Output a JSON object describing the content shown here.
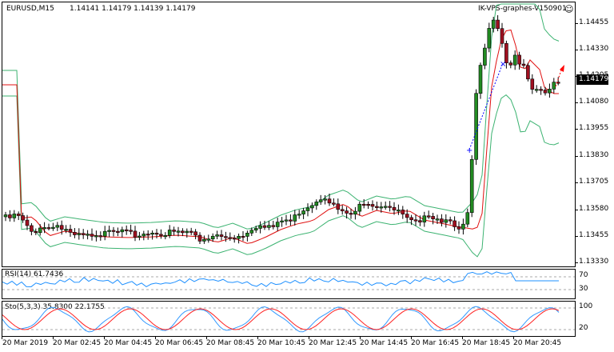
{
  "chart_header": {
    "symbol_timeframe": "EURUSD,M15",
    "ohlc": "1.14141 1.14179 1.14139 1.14179"
  },
  "watermark": "IK-VPS-graphes-V150901",
  "price_axis": [
    "1.14455",
    "1.14330",
    "1.14205",
    "1.14080",
    "1.13955",
    "1.13830",
    "1.13705",
    "1.13580",
    "1.13455",
    "1.13330"
  ],
  "current_price": "1.14179",
  "rsi": {
    "label": "RSI(14) 61.7436",
    "levels": [
      "70",
      "30"
    ],
    "value": 61.7436
  },
  "stoch": {
    "label": "Sto(5,3,3) 35.8300 22.1755",
    "levels": [
      "100",
      "20"
    ],
    "main": 35.83,
    "signal": 22.1755
  },
  "time_axis": [
    "20 Mar 2019",
    "20 Mar 02:45",
    "20 Mar 04:45",
    "20 Mar 06:45",
    "20 Mar 08:45",
    "20 Mar 10:45",
    "20 Mar 12:45",
    "20 Mar 14:45",
    "20 Mar 16:45",
    "20 Mar 18:45",
    "20 Mar 20:45"
  ],
  "colors": {
    "bull": "#228b22",
    "bear": "#a01020",
    "ma": "#e01010",
    "bands": "#3cb371",
    "rsi": "#1e90ff",
    "stoch_main": "#3399ff",
    "stoch_signal": "#ff2020"
  },
  "icons": {
    "watermark_icon": "smiley-icon"
  },
  "chart_data": {
    "type": "candlestick",
    "x": [
      "20 Mar 2019",
      "20 Mar 02:45",
      "20 Mar 04:45",
      "20 Mar 06:45",
      "20 Mar 08:45",
      "20 Mar 10:45",
      "20 Mar 12:45",
      "20 Mar 14:45",
      "20 Mar 16:45",
      "20 Mar 18:45",
      "20 Mar 20:45"
    ],
    "ylim": [
      1.133,
      1.145
    ],
    "close_approx": [
      1.1353,
      1.135,
      1.1348,
      1.1349,
      1.1342,
      1.1352,
      1.136,
      1.1358,
      1.1352,
      1.144,
      1.1418
    ],
    "last_close": 1.14179
  }
}
